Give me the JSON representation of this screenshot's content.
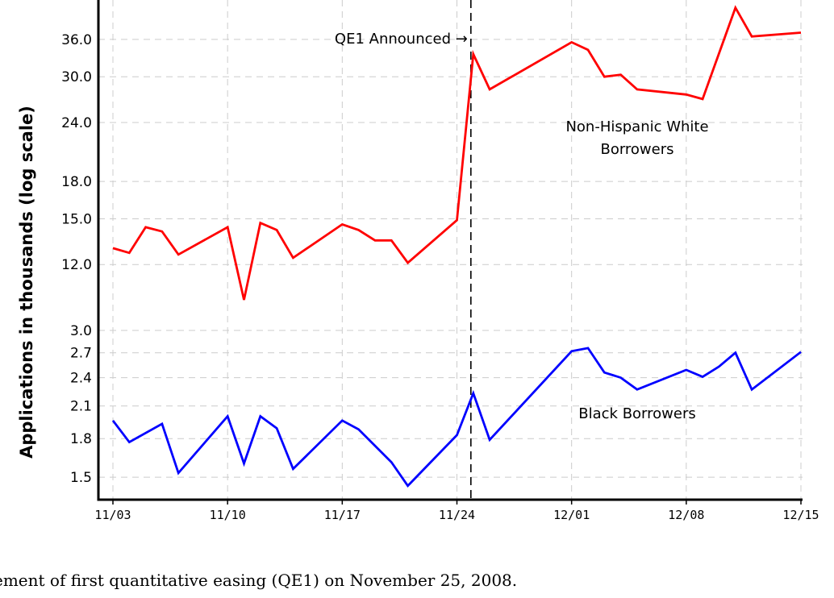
{
  "chart_data": {
    "type": "line",
    "title": "",
    "xlabel": "",
    "ylabel": "Applications in thousands (log scale)",
    "x_ticks": [
      "11/03",
      "11/10",
      "11/17",
      "11/24",
      "12/01",
      "12/08",
      "12/15"
    ],
    "upper_y_ticks": [
      "36.0",
      "30.0",
      "24.0",
      "18.0",
      "15.0",
      "12.0"
    ],
    "lower_y_ticks": [
      "3.0",
      "2.7",
      "2.4",
      "2.1",
      "1.8",
      "1.5"
    ],
    "grid": true,
    "vline": {
      "date": "2008-11-25",
      "label": "QE1 Announced →"
    },
    "series": [
      {
        "name": "Non-Hispanic White Borrowers",
        "label_lines": [
          "Non-Hispanic White",
          "Borrowers"
        ],
        "color": "#ff0000",
        "points": [
          [
            "2008-11-03",
            13.0
          ],
          [
            "2008-11-04",
            12.7
          ],
          [
            "2008-11-05",
            14.4
          ],
          [
            "2008-11-06",
            14.1
          ],
          [
            "2008-11-07",
            12.6
          ],
          [
            "2008-11-10",
            14.4
          ],
          [
            "2008-11-11",
            10.1
          ],
          [
            "2008-11-12",
            14.7
          ],
          [
            "2008-11-13",
            14.2
          ],
          [
            "2008-11-14",
            12.4
          ],
          [
            "2008-11-17",
            14.6
          ],
          [
            "2008-11-18",
            14.2
          ],
          [
            "2008-11-19",
            13.5
          ],
          [
            "2008-11-20",
            13.5
          ],
          [
            "2008-11-21",
            12.1
          ],
          [
            "2008-11-24",
            14.9
          ],
          [
            "2008-11-25",
            33.5
          ],
          [
            "2008-11-26",
            28.2
          ],
          [
            "2008-12-01",
            35.5
          ],
          [
            "2008-12-02",
            34.2
          ],
          [
            "2008-12-03",
            30.0
          ],
          [
            "2008-12-04",
            30.3
          ],
          [
            "2008-12-05",
            28.2
          ],
          [
            "2008-12-08",
            27.5
          ],
          [
            "2008-12-09",
            26.9
          ],
          [
            "2008-12-11",
            42.0
          ],
          [
            "2008-12-12",
            36.5
          ],
          [
            "2008-12-15",
            37.2
          ]
        ]
      },
      {
        "name": "Black Borrowers",
        "label_lines": [
          "Black Borrowers"
        ],
        "color": "#0000ff",
        "points": [
          [
            "2008-11-03",
            1.96
          ],
          [
            "2008-11-04",
            1.77
          ],
          [
            "2008-11-06",
            1.93
          ],
          [
            "2008-11-07",
            1.53
          ],
          [
            "2008-11-10",
            2.0
          ],
          [
            "2008-11-11",
            1.6
          ],
          [
            "2008-11-12",
            2.0
          ],
          [
            "2008-11-13",
            1.89
          ],
          [
            "2008-11-14",
            1.56
          ],
          [
            "2008-11-17",
            1.96
          ],
          [
            "2008-11-18",
            1.88
          ],
          [
            "2008-11-20",
            1.61
          ],
          [
            "2008-11-21",
            1.44
          ],
          [
            "2008-11-24",
            1.83
          ],
          [
            "2008-11-25",
            2.23
          ],
          [
            "2008-11-26",
            1.79
          ],
          [
            "2008-12-01",
            2.72
          ],
          [
            "2008-12-02",
            2.76
          ],
          [
            "2008-12-03",
            2.46
          ],
          [
            "2008-12-04",
            2.4
          ],
          [
            "2008-12-05",
            2.27
          ],
          [
            "2008-12-08",
            2.49
          ],
          [
            "2008-12-09",
            2.41
          ],
          [
            "2008-12-10",
            2.53
          ],
          [
            "2008-12-11",
            2.7
          ],
          [
            "2008-12-12",
            2.27
          ],
          [
            "2008-12-15",
            2.71
          ]
        ]
      }
    ]
  },
  "caption": "ement of first quantitative easing (QE1) on November 25, 2008."
}
